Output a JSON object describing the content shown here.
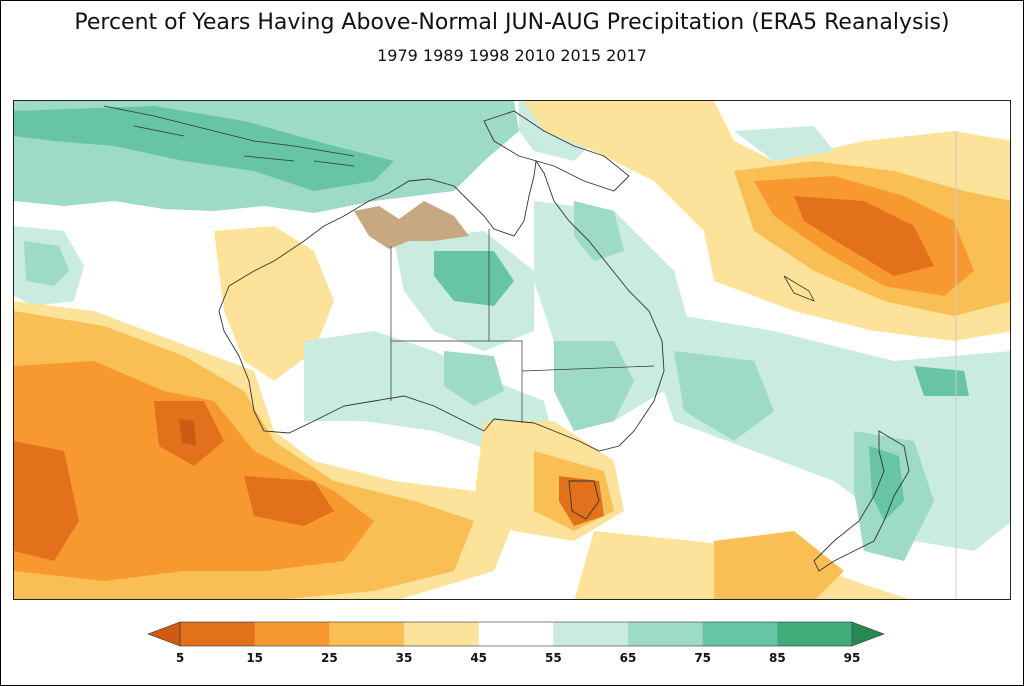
{
  "title": "Percent of Years Having Above-Normal JUN-AUG Precipitation (ERA5 Reanalysis)",
  "subtitle": "1979 1989 1998 2010 2015 2017",
  "colorbar": {
    "ticks": [
      "5",
      "15",
      "25",
      "35",
      "45",
      "55",
      "65",
      "75",
      "85",
      "95"
    ],
    "colors": [
      "#e3711c",
      "#f7992f",
      "#f9bf55",
      "#fde39a",
      "#ffffff",
      "#c9ebe0",
      "#9ddac8",
      "#67c4a4",
      "#3fac7a"
    ],
    "under_color": "#cf5b12",
    "over_color": "#248a52"
  },
  "map": {
    "region": "Australia and surrounding ocean",
    "colors": {
      "dark_orange": "#e3711c",
      "orange": "#f7992f",
      "light_orange": "#f9bf55",
      "pale_yellow": "#fde39a",
      "pale_green": "#c9ebe0",
      "light_green": "#9ddac8",
      "green": "#67c4a4",
      "dark_green": "#3fac7a",
      "no_data_brown": "#c8a882"
    }
  }
}
